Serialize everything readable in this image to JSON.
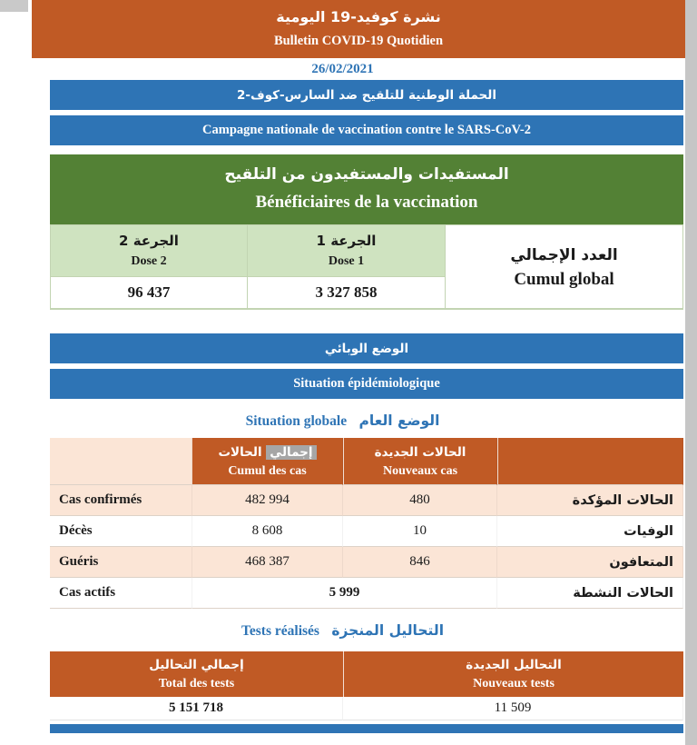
{
  "colors": {
    "orange": "#C05A25",
    "blue": "#2E74B5",
    "green": "#538135",
    "light_green": "#CFE3C0",
    "beige": "#FBE5D6",
    "highlight_gray": "#A6A6A6"
  },
  "header": {
    "title_ar": "نشرة كوفيد-19 اليومية",
    "title_fr": "Bulletin COVID-19 Quotidien",
    "date": "26/02/2021"
  },
  "vaccination": {
    "banner_ar": "الحملة الوطنية للتلقيح ضد السارس-كوف-2",
    "banner_fr": "Campagne nationale de vaccination contre le SARS-CoV-2",
    "section_ar": "المستفيدات والمستفيدون من التلقيح",
    "section_fr": "Bénéficiaires de la vaccination",
    "table": {
      "total_label_ar": "العدد الإجمالي",
      "total_label_fr": "Cumul global",
      "dose1_ar": "الجرعة 1",
      "dose1_fr": "Dose 1",
      "dose1_value": "3 327 858",
      "dose2_ar": "الجرعة 2",
      "dose2_fr": "Dose 2",
      "dose2_value": "96 437"
    }
  },
  "epidemio": {
    "banner_ar": "الوضع الوبائي",
    "banner_fr": "Situation épidémiologique",
    "subtitle_fr": "Situation globale",
    "subtitle_ar": "الوضع العام",
    "table": {
      "cumul_header_ar_hl": "إجمالي",
      "cumul_header_ar_rest": "الحالات",
      "cumul_header_fr": "Cumul des cas",
      "new_header_ar": "الحالات الجديدة",
      "new_header_fr": "Nouveaux cas",
      "rows": [
        {
          "label_fr": "Cas confirmés",
          "cumul": "482 994",
          "nouveaux": "480",
          "label_ar": "الحالات المؤكدة"
        },
        {
          "label_fr": "Décès",
          "cumul": "8 608",
          "nouveaux": "10",
          "label_ar": "الوفيات"
        },
        {
          "label_fr": "Guéris",
          "cumul": "468 387",
          "nouveaux": "846",
          "label_ar": "المتعافون"
        },
        {
          "label_fr": "Cas actifs",
          "actifs_value": "5 999",
          "label_ar": "الحالات النشطة"
        }
      ]
    }
  },
  "tests": {
    "title_fr": "Tests réalisés",
    "title_ar": "التحاليل المنجزة",
    "table": {
      "total_ar": "إجمالي التحاليل",
      "total_fr": "Total des tests",
      "total_value": "5 151 718",
      "new_ar": "التحاليل الجديدة",
      "new_fr": "Nouveaux tests",
      "new_value": "11 509"
    }
  }
}
